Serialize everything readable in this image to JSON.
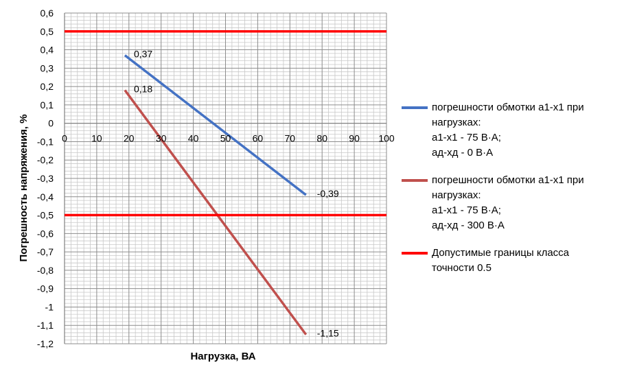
{
  "chart_data": {
    "type": "line",
    "title": "",
    "xlabel": "Нагрузка, ВА",
    "ylabel": "Погрешность напряжения, %",
    "xlim": [
      0,
      100
    ],
    "ylim": [
      -1.2,
      0.6
    ],
    "x_ticks": [
      "0",
      "10",
      "20",
      "30",
      "40",
      "50",
      "60",
      "70",
      "80",
      "90",
      "100"
    ],
    "y_ticks": [
      "0,6",
      "0,5",
      "0,4",
      "0,3",
      "0,2",
      "0,1",
      "0",
      "-0,1",
      "-0,2",
      "-0,3",
      "-0,4",
      "-0,5",
      "-0,6",
      "-0,7",
      "-0,8",
      "-0,9",
      "-1",
      "-1,1",
      "-1,2"
    ],
    "grid": true,
    "legend_position": "right",
    "series": [
      {
        "name": "погрешности обмотки а1-х1 при нагрузках: а1-х1 - 75 В·А; ад-хд - 0 В·А",
        "legend_lines": [
          "погрешности обмотки а1-х1 при",
          "нагрузках:",
          "а1-х1 - 75 В·А;",
          "ад-хд - 0 В·А"
        ],
        "color": "#4472C4",
        "x": [
          18.75,
          75
        ],
        "y": [
          0.37,
          -0.39
        ],
        "labels": [
          "0,37",
          "-0,39"
        ]
      },
      {
        "name": "погрешности обмотки а1-х1 при нагрузках: а1-х1 - 75 В·А; ад-хд - 300 В·А",
        "legend_lines": [
          "погрешности обмотки а1-х1 при",
          "нагрузках:",
          "а1-х1 - 75 В·А;",
          "ад-хд - 300 В·А"
        ],
        "color": "#C0504D",
        "x": [
          18.75,
          75
        ],
        "y": [
          0.18,
          -1.15
        ],
        "labels": [
          "0,18",
          "-1,15"
        ]
      },
      {
        "name": "Допустимые границы класса точности 0.5",
        "legend_lines": [
          "Допустимые границы класса",
          "точности 0.5"
        ],
        "color": "#FF0000",
        "type": "hline",
        "y": [
          0.5,
          -0.5
        ]
      }
    ]
  }
}
